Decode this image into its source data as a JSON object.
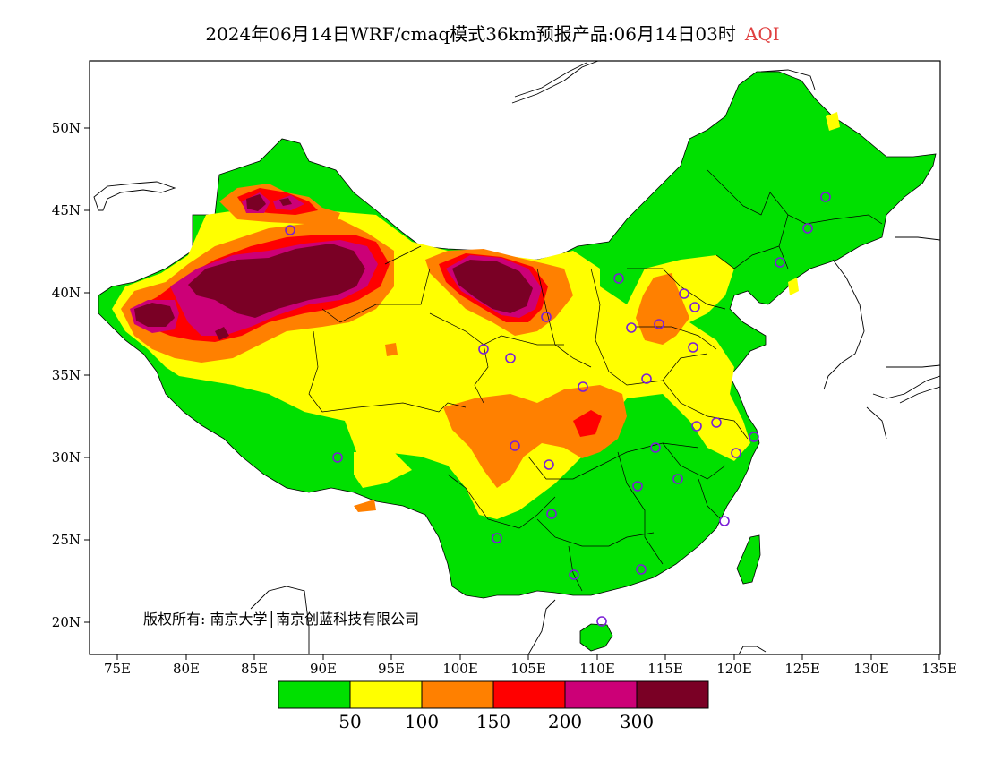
{
  "title": {
    "main": "2024年06月14日WRF/cmaq模式36km预报产品:06月14日03时",
    "variable": "AQI"
  },
  "map": {
    "lon_range": [
      73,
      135
    ],
    "lat_range": [
      18,
      54
    ],
    "lat_ticks": [
      "50N",
      "45N",
      "40N",
      "35N",
      "30N",
      "25N",
      "20N"
    ],
    "lon_ticks": [
      "75E",
      "80E",
      "85E",
      "90E",
      "95E",
      "100E",
      "105E",
      "110E",
      "115E",
      "120E",
      "125E",
      "130E",
      "135E"
    ],
    "copyright": "版权所有: 南京大学│南京创蓝科技有限公司",
    "stations_shown": true
  },
  "legend": {
    "colors": [
      "#00e000",
      "#ffff00",
      "#ff8000",
      "#ff0000",
      "#cc0077",
      "#7a0025"
    ],
    "labels": [
      "50",
      "100",
      "150",
      "200",
      "300"
    ]
  },
  "colors": {
    "frame": "#000000",
    "station": "#7a1fd6",
    "title_accent": "#e04040"
  }
}
